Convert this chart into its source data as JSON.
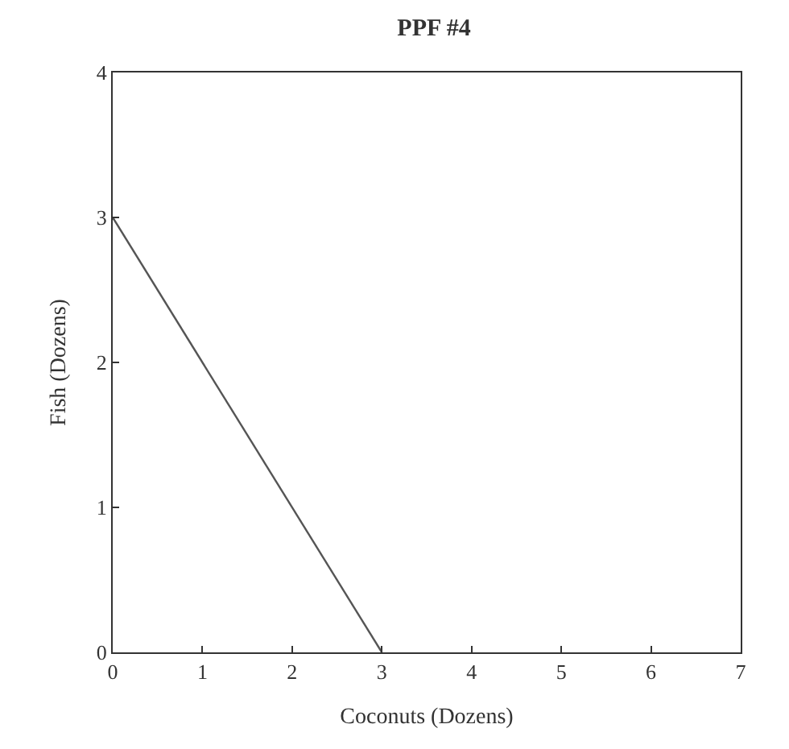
{
  "chart_data": {
    "type": "line",
    "title": "PPF #4",
    "xlabel": "Coconuts (Dozens)",
    "ylabel": "Fish (Dozens)",
    "x": [
      0,
      3
    ],
    "series": [
      {
        "color": "#555555",
        "values": [
          3,
          0
        ]
      }
    ],
    "xlim": [
      0,
      7
    ],
    "xticks": [
      0,
      1,
      2,
      3,
      4,
      5,
      6,
      7
    ],
    "ylim": [
      0,
      4
    ],
    "yticks": [
      0,
      1,
      2,
      3,
      4
    ],
    "marker": "none",
    "line_style": "solid"
  }
}
